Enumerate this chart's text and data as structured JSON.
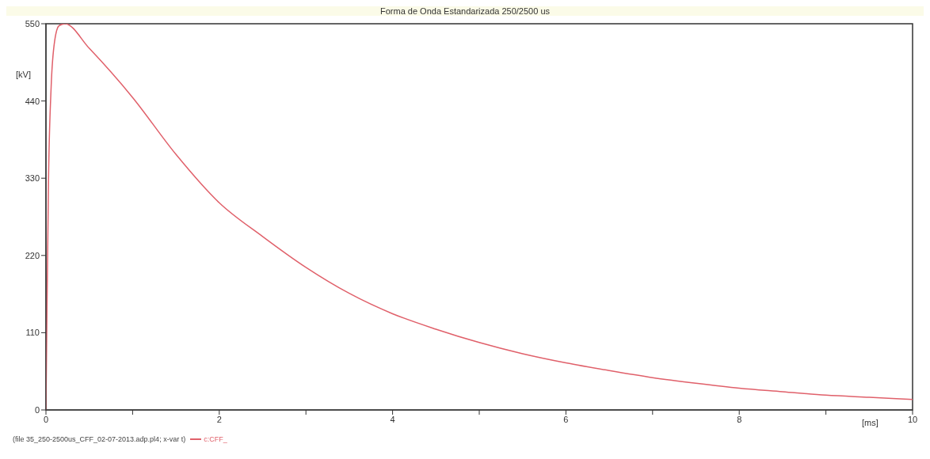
{
  "chart_data": {
    "type": "line",
    "title": "Forma de Onda Estandarizada  250/2500 us",
    "xlabel": "[ms]",
    "ylabel": "[kV]",
    "annotations": [
      "(file 35_250-2500us_CFF_02-07-2013.adp.pl4; x-var t)"
    ],
    "legend": "bottom left",
    "x": [
      0,
      0.01,
      0.03,
      0.06,
      0.1,
      0.15,
      0.22,
      0.5,
      1,
      1.5,
      2,
      2.5,
      3,
      3.5,
      4,
      4.5,
      5,
      5.5,
      6,
      6.5,
      7,
      7.5,
      8,
      8.5,
      9,
      9.5,
      10
    ],
    "series": [
      {
        "name": "c:CFF_",
        "color": "#e0606a",
        "values": [
          0,
          120,
          330,
          460,
          525,
          547,
          550,
          515,
          445,
          364,
          295,
          247,
          203,
          166,
          137,
          115,
          96,
          80,
          67,
          56,
          46,
          38,
          31,
          26,
          21,
          18,
          15
        ]
      }
    ],
    "xlim": [
      0,
      10
    ],
    "xticks": [
      0,
      {
        "value": 1,
        "label": null
      },
      2,
      {
        "value": 3,
        "label": null
      },
      4,
      {
        "value": 5,
        "label": null
      },
      6,
      {
        "value": 7,
        "label": null
      },
      8,
      {
        "value": 9,
        "label": null
      },
      10
    ],
    "ylim": [
      0,
      550
    ],
    "yticks": [
      0,
      110,
      220,
      330,
      440,
      550
    ],
    "grid": false,
    "marker": "none",
    "line_style": "solid"
  }
}
